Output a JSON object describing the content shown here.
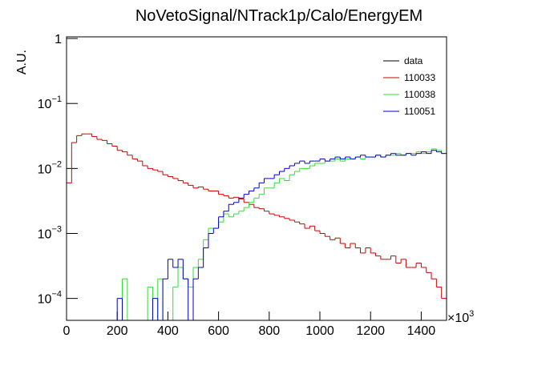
{
  "chart_data": {
    "type": "histogram",
    "title": "NoVetoSignal/NTrack1p/Calo/EnergyEM",
    "y_label": "A.U.",
    "x_multiplier": "×10",
    "x_multiplier_exponent": "3",
    "log_y": true,
    "legend_position": "upper right",
    "xlim": [
      0,
      1500
    ],
    "xticks": [
      0,
      200,
      400,
      600,
      800,
      1000,
      1200,
      1400
    ],
    "ylim": [
      4.6e-05,
      1.06
    ],
    "yticks": [
      {
        "value": 0.0001,
        "label": "10",
        "exponent": "−4"
      },
      {
        "value": 0.001,
        "label": "10",
        "exponent": "−3"
      },
      {
        "value": 0.01,
        "label": "10",
        "exponent": "−2"
      },
      {
        "value": 0.1,
        "label": "10",
        "exponent": "−1"
      },
      1
    ],
    "bins": [
      0,
      20,
      40,
      60,
      80,
      100,
      120,
      140,
      160,
      180,
      200,
      220,
      240,
      260,
      280,
      300,
      320,
      340,
      360,
      380,
      400,
      420,
      440,
      460,
      480,
      500,
      520,
      540,
      560,
      580,
      600,
      620,
      640,
      660,
      680,
      700,
      720,
      740,
      760,
      780,
      800,
      820,
      840,
      860,
      880,
      900,
      920,
      940,
      960,
      980,
      1000,
      1020,
      1040,
      1060,
      1080,
      1100,
      1120,
      1140,
      1160,
      1180,
      1200,
      1220,
      1240,
      1260,
      1280,
      1300,
      1320,
      1340,
      1360,
      1380,
      1400,
      1420,
      1440,
      1460,
      1480,
      1500
    ],
    "series": [
      {
        "name": "data",
        "color": "#000000",
        "values": [
          null,
          null,
          null,
          null,
          null,
          null,
          null,
          null,
          null,
          null,
          null,
          null,
          null,
          null,
          null,
          null,
          null,
          null,
          null,
          null,
          null,
          null,
          null,
          null,
          null,
          null,
          null,
          null,
          null,
          null,
          null,
          null,
          null,
          null,
          null,
          null,
          null,
          null,
          null,
          null,
          null,
          null,
          null,
          null,
          null,
          null,
          null,
          null,
          null,
          null,
          null,
          null,
          null,
          null,
          null,
          null,
          null,
          null,
          null,
          null,
          null,
          null,
          null,
          null,
          null,
          null,
          null,
          null,
          null,
          null,
          null,
          null,
          null,
          null,
          null
        ]
      },
      {
        "name": "110033",
        "color": "#cc0000",
        "values": [
          0.006,
          0.025,
          0.032,
          0.034,
          0.034,
          0.031,
          0.028,
          0.027,
          0.024,
          0.022,
          0.019,
          0.018,
          0.016,
          0.014,
          0.013,
          0.011,
          0.01,
          0.0095,
          0.009,
          0.008,
          0.0075,
          0.007,
          0.0065,
          0.006,
          0.0055,
          0.005,
          0.0052,
          0.0048,
          0.0045,
          0.0045,
          0.004,
          0.0038,
          0.0035,
          0.0036,
          0.0034,
          0.003,
          0.0028,
          0.0025,
          0.0024,
          0.0022,
          0.002,
          0.0019,
          0.0018,
          0.0017,
          0.0016,
          0.0015,
          0.0014,
          0.0012,
          0.0013,
          0.0011,
          0.001,
          0.0009,
          0.0008,
          0.00085,
          0.0007,
          0.0006,
          0.0007,
          0.0006,
          0.0005,
          0.0006,
          0.0005,
          0.00045,
          0.0004,
          0.0004,
          0.00045,
          0.00035,
          0.0004,
          0.0003,
          0.0003,
          0.00035,
          0.0003,
          0.00025,
          0.0002,
          0.00015,
          0.0001
        ]
      },
      {
        "name": "110038",
        "color": "#33dd33",
        "values": [
          null,
          null,
          null,
          null,
          null,
          null,
          null,
          null,
          null,
          null,
          null,
          0.0002,
          null,
          null,
          null,
          null,
          0.00015,
          null,
          0.0002,
          null,
          null,
          0.00015,
          0.0003,
          0.0002,
          0.00015,
          0.0003,
          0.0004,
          0.0008,
          0.0012,
          0.0012,
          0.0015,
          0.002,
          0.0018,
          0.002,
          0.0022,
          0.0025,
          0.003,
          0.0035,
          0.004,
          0.005,
          0.005,
          0.006,
          0.007,
          0.0065,
          0.008,
          0.009,
          0.01,
          0.01,
          0.011,
          0.012,
          0.012,
          0.013,
          0.013,
          0.014,
          0.013,
          0.014,
          0.014,
          0.015,
          0.014,
          0.015,
          0.015,
          0.016,
          0.015,
          0.016,
          0.016,
          0.017,
          0.016,
          0.017,
          0.017,
          0.018,
          0.017,
          0.018,
          0.02,
          0.019,
          0.017
        ]
      },
      {
        "name": "110051",
        "color": "#0000cc",
        "values": [
          null,
          null,
          null,
          null,
          null,
          null,
          null,
          null,
          null,
          null,
          0.0001,
          null,
          null,
          null,
          null,
          null,
          null,
          0.0001,
          null,
          0.0002,
          0.0004,
          0.0003,
          0.0004,
          0.0002,
          null,
          0.0002,
          0.0003,
          0.0006,
          0.001,
          0.0012,
          0.0018,
          0.0022,
          0.0028,
          0.003,
          0.0035,
          0.004,
          0.0045,
          0.005,
          0.006,
          0.007,
          0.007,
          0.008,
          0.009,
          0.01,
          0.011,
          0.012,
          0.013,
          0.012,
          0.013,
          0.013,
          0.014,
          0.013,
          0.014,
          0.015,
          0.014,
          0.015,
          0.014,
          0.015,
          0.016,
          0.015,
          0.015,
          0.016,
          0.015,
          0.016,
          0.017,
          0.016,
          0.016,
          0.017,
          0.016,
          0.017,
          0.018,
          0.017,
          0.019,
          0.018,
          0.017
        ]
      }
    ]
  }
}
